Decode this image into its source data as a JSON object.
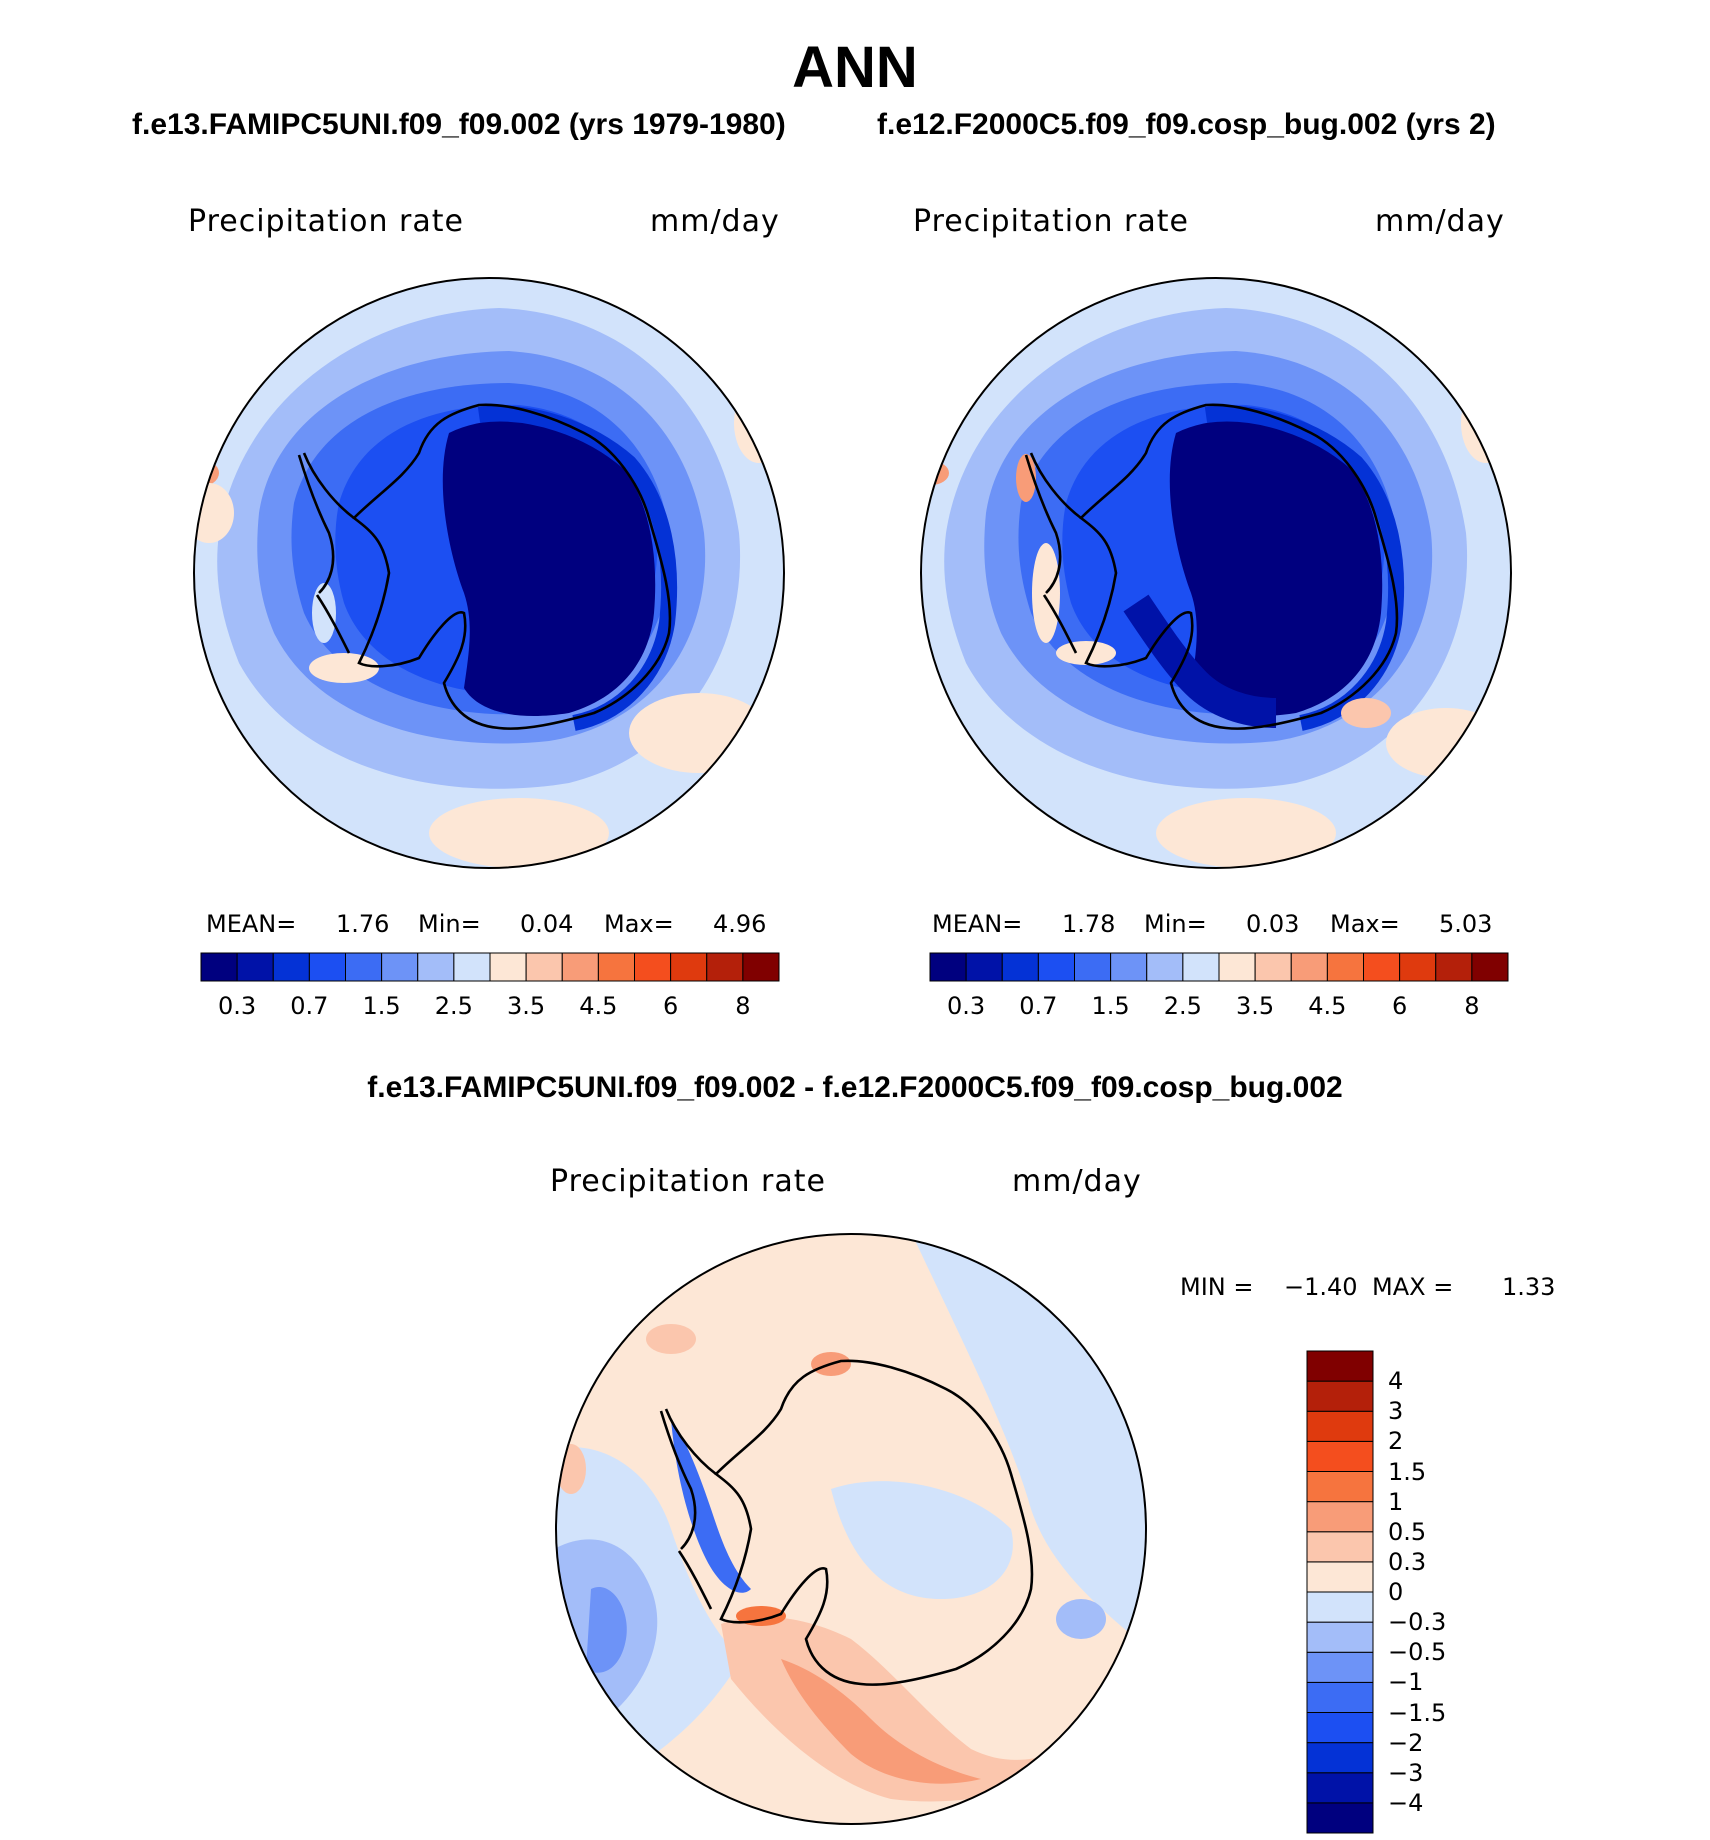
{
  "title": "ANN",
  "subtitles": {
    "left": "f.e13.FAMIPC5UNI.f09_f09.002 (yrs 1979-1980)",
    "right": "f.e12.F2000C5.f09_f09.cosp_bug.002 (yrs 2)",
    "diff": "f.e13.FAMIPC5UNI.f09_f09.002 - f.e12.F2000C5.f09_f09.cosp_bug.002"
  },
  "panels": {
    "left": {
      "variable": "Precipitation rate",
      "units": "mm/day",
      "stats": {
        "mean_label": "MEAN=",
        "mean": "1.76",
        "min_label": "Min=",
        "min": "0.04",
        "max_label": "Max=",
        "max": "4.96"
      }
    },
    "right": {
      "variable": "Precipitation rate",
      "units": "mm/day",
      "stats": {
        "mean_label": "MEAN=",
        "mean": "1.78",
        "min_label": "Min=",
        "min": "0.03",
        "max_label": "Max=",
        "max": "5.03"
      }
    },
    "diff": {
      "variable": "Precipitation rate",
      "units": "mm/day",
      "stats": {
        "min_label": "MIN =",
        "min": "−1.40",
        "max_label": "MAX =",
        "max": "1.33"
      }
    }
  },
  "colorbar_abs": {
    "colors": [
      "#00007f",
      "#0012a8",
      "#0432d6",
      "#1c4ff2",
      "#3c6cf4",
      "#6d93f7",
      "#a3bdf9",
      "#d2e3fb",
      "#fde7d6",
      "#fbc6ad",
      "#f89c78",
      "#f6743e",
      "#f44e1e",
      "#df3a0e",
      "#b4200a",
      "#800000"
    ],
    "tick_labels": [
      "0.3",
      "0.7",
      "1.5",
      "2.5",
      "3.5",
      "4.5",
      "6",
      "8"
    ]
  },
  "colorbar_diff": {
    "colors_bottom_to_top": [
      "#00007f",
      "#0012a8",
      "#0432d6",
      "#1c4ff2",
      "#3c6cf4",
      "#6d93f7",
      "#a3bdf9",
      "#d2e3fb",
      "#fde7d6",
      "#fbc6ad",
      "#f89c78",
      "#f6743e",
      "#f44e1e",
      "#df3a0e",
      "#b4200a",
      "#800000"
    ],
    "tick_labels_top_to_bottom": [
      "4",
      "3",
      "2",
      "1.5",
      "1",
      "0.5",
      "0.3",
      "0",
      "−0.3",
      "−0.5",
      "−1",
      "−1.5",
      "−2",
      "−3",
      "−4"
    ]
  }
}
